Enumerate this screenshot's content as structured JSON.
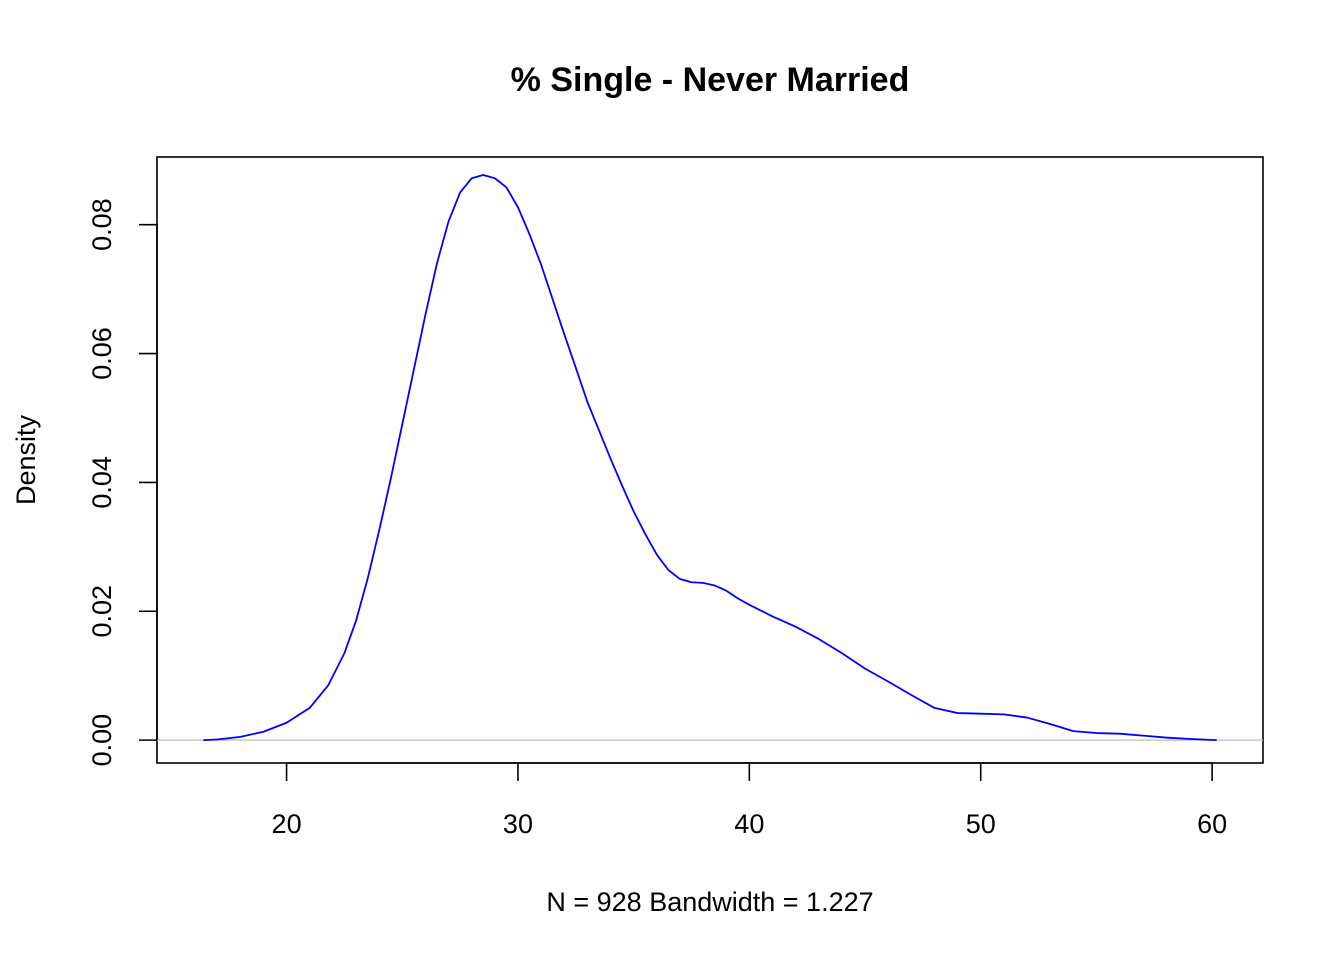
{
  "chart_data": {
    "type": "line",
    "title": "% Single - Never Married",
    "xlabel": "N = 928   Bandwidth = 1.227",
    "ylabel": "Density",
    "xlim": [
      14.4,
      62.2
    ],
    "ylim": [
      -0.00355,
      0.0905
    ],
    "x_ticks": [
      20,
      30,
      40,
      50,
      60
    ],
    "x_tick_labels": [
      "20",
      "30",
      "40",
      "50",
      "60"
    ],
    "y_ticks": [
      0,
      0.02,
      0.04,
      0.06,
      0.08
    ],
    "y_tick_labels": [
      "0.00",
      "0.02",
      "0.04",
      "0.06",
      "0.08"
    ],
    "grid": false,
    "zero_line": true,
    "zero_line_color": "#bebebe",
    "line_color": "#0000ff",
    "series": [
      {
        "x": [
          16.4,
          17.0,
          18.0,
          19.0,
          20.0,
          21.0,
          21.8,
          22.5,
          23.0,
          23.5,
          24.0,
          24.5,
          25.0,
          25.5,
          26.0,
          26.5,
          27.0,
          27.5,
          28.0,
          28.5,
          29.0,
          29.5,
          30.0,
          30.5,
          31.0,
          31.5,
          32.0,
          32.5,
          33.0,
          33.5,
          34.0,
          34.5,
          35.0,
          35.5,
          36.0,
          36.5,
          37.0,
          37.5,
          38.0,
          38.5,
          39.0,
          39.5,
          40.0,
          41.0,
          42.0,
          43.0,
          44.0,
          45.0,
          46.0,
          47.0,
          48.0,
          49.0,
          50.0,
          51.0,
          52.0,
          53.0,
          54.0,
          55.0,
          56.0,
          57.0,
          58.0,
          59.0,
          60.2
        ],
        "y": [
          0.0,
          0.0001,
          0.0005,
          0.0013,
          0.0027,
          0.005,
          0.0085,
          0.0135,
          0.0185,
          0.025,
          0.0325,
          0.0405,
          0.049,
          0.0575,
          0.066,
          0.074,
          0.0805,
          0.085,
          0.0872,
          0.0877,
          0.0872,
          0.0858,
          0.0827,
          0.0785,
          0.0738,
          0.0684,
          0.063,
          0.0578,
          0.0525,
          0.0481,
          0.0437,
          0.0395,
          0.0355,
          0.032,
          0.0288,
          0.0264,
          0.025,
          0.0245,
          0.0244,
          0.024,
          0.0232,
          0.022,
          0.021,
          0.0192,
          0.0176,
          0.0157,
          0.0135,
          0.0111,
          0.0091,
          0.007,
          0.005,
          0.0042,
          0.0041,
          0.004,
          0.0035,
          0.0025,
          0.0014,
          0.0011,
          0.001,
          0.0007,
          0.0004,
          0.0002,
          0.0
        ]
      }
    ]
  }
}
